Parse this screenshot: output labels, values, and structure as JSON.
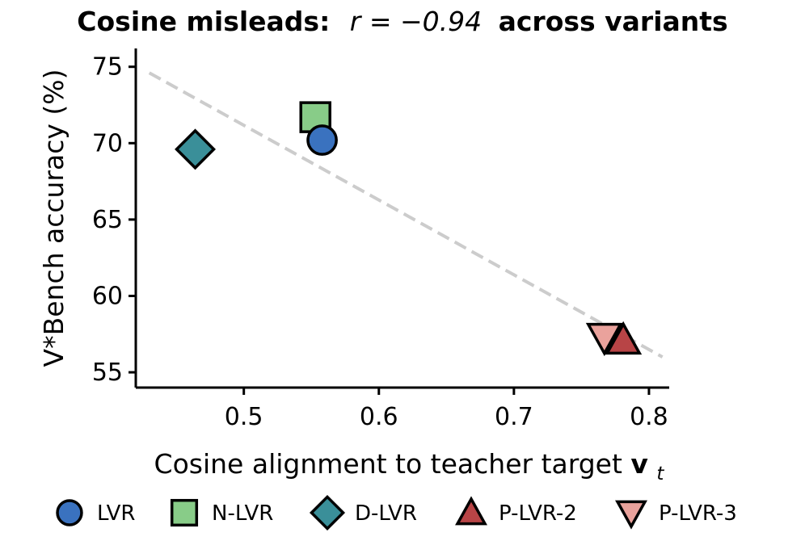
{
  "chart_data": {
    "type": "scatter",
    "title_prefix": "Cosine misleads:",
    "title_math": "r = −0.94",
    "title_suffix": "across variants",
    "xlabel_text": "Cosine alignment to teacher target ",
    "xlabel_vector": "v",
    "xlabel_subscript": "t",
    "ylabel": "V*Bench accuracy (%)",
    "xlim": [
      0.42,
      0.815
    ],
    "ylim": [
      54,
      76.2
    ],
    "x_ticks": [
      0.5,
      0.6,
      0.7,
      0.8
    ],
    "x_tick_labels": [
      "0.5",
      "0.6",
      "0.7",
      "0.8"
    ],
    "y_ticks": [
      55,
      60,
      65,
      70,
      75
    ],
    "y_tick_labels": [
      "55",
      "60",
      "65",
      "70",
      "75"
    ],
    "grid": false,
    "trend_line": {
      "style": "dashed",
      "color": "#cccccc",
      "x": [
        0.43,
        0.81
      ],
      "y": [
        74.6,
        56.0
      ]
    },
    "series": [
      {
        "name": "LVR",
        "marker": "circle",
        "color": "#3a72bf",
        "x": [
          0.558
        ],
        "y": [
          70.2
        ]
      },
      {
        "name": "N-LVR",
        "marker": "square",
        "color": "#88cc88",
        "x": [
          0.553
        ],
        "y": [
          71.7
        ]
      },
      {
        "name": "D-LVR",
        "marker": "diamond",
        "color": "#3a8f99",
        "x": [
          0.464
        ],
        "y": [
          69.6
        ]
      },
      {
        "name": "P-LVR-2",
        "marker": "triangle-up",
        "color": "#b84446",
        "x": [
          0.781
        ],
        "y": [
          57.1
        ]
      },
      {
        "name": "P-LVR-3",
        "marker": "triangle-down",
        "color": "#eaa29c",
        "x": [
          0.767
        ],
        "y": [
          57.3
        ]
      }
    ],
    "legend_position": "bottom"
  }
}
